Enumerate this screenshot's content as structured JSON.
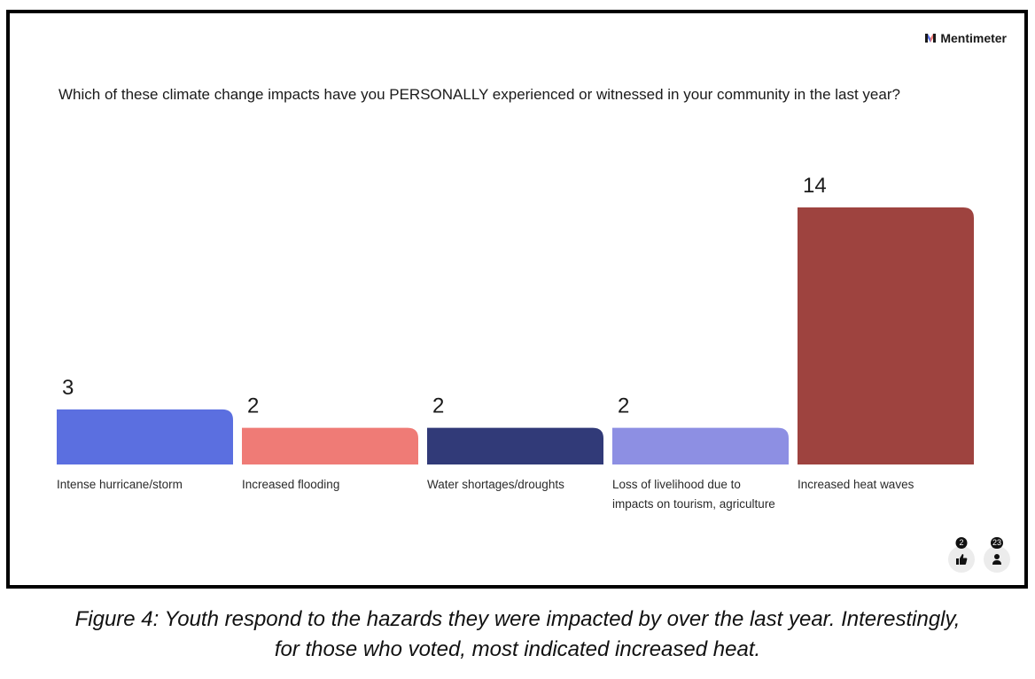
{
  "brand": {
    "name": "Mentimeter",
    "icon": "mentimeter-logo-icon"
  },
  "question": "Which of these climate change impacts have you PERSONALLY experienced or witnessed in your community in the last year?",
  "chart_data": {
    "type": "bar",
    "title": "Which of these climate change impacts have you PERSONALLY experienced or witnessed in your community in the last year?",
    "categories": [
      [
        "Intense hurricane/storm"
      ],
      [
        "Increased flooding"
      ],
      [
        "Water shortages/droughts"
      ],
      [
        "Loss of livelihood due to",
        "impacts on tourism, agriculture"
      ],
      [
        "Increased heat waves"
      ]
    ],
    "values": [
      3,
      2,
      2,
      2,
      14
    ],
    "colors": [
      "#5b6fe0",
      "#ef7b76",
      "#313a78",
      "#8d8fe3",
      "#9e433f"
    ],
    "xlabel": "",
    "ylabel": "",
    "ylim": [
      0,
      14
    ],
    "grid": false
  },
  "footer": {
    "reactions": {
      "count": "2",
      "icon": "thumbs-up-icon"
    },
    "participants": {
      "count": "23",
      "icon": "person-icon"
    }
  },
  "caption": {
    "line1": "Figure 4: Youth respond to the hazards they were impacted by over the last year. Interestingly,",
    "line2": "for those who voted, most indicated increased heat."
  }
}
